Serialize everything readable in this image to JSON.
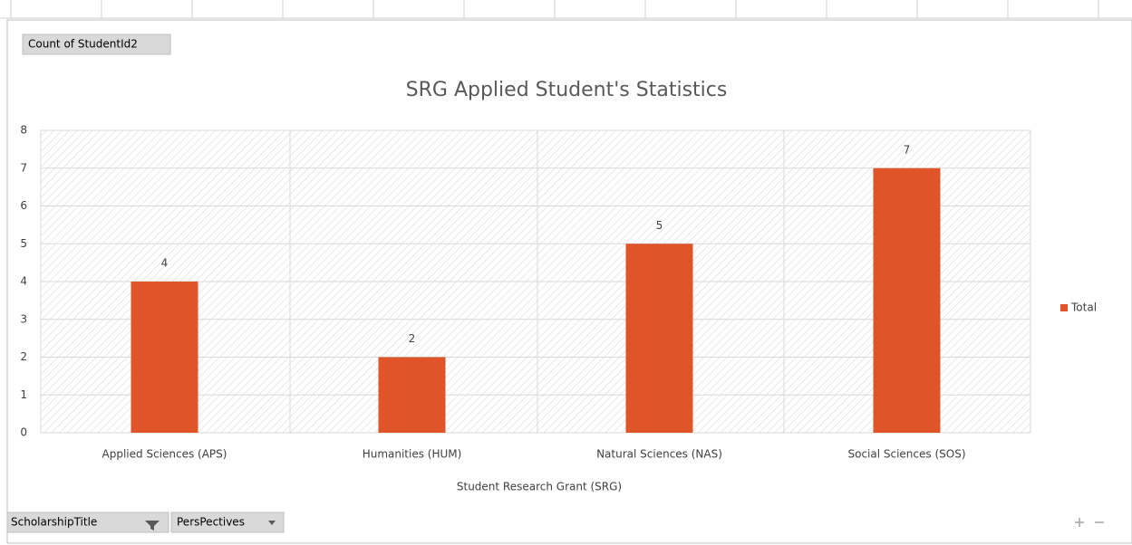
{
  "chart_data": {
    "type": "bar",
    "title": "SRG Applied Student's Statistics",
    "categories": [
      "Applied Sciences (APS)",
      "Humanities (HUM)",
      "Natural Sciences (NAS)",
      "Social Sciences (SOS)"
    ],
    "series": [
      {
        "name": "Total",
        "color": "#e0542a",
        "values": [
          4,
          2,
          5,
          7
        ]
      }
    ],
    "ylim": [
      0,
      8
    ],
    "yticks": [
      0,
      1,
      2,
      3,
      4,
      5,
      6,
      7,
      8
    ],
    "grid": true,
    "xlabel": "Student Research Grant (SRG)",
    "legend": "right"
  },
  "pivot": {
    "value_field": "Count of StudentId2",
    "axis_fields": [
      "ScholarshipTitle",
      "PersPectives"
    ]
  }
}
